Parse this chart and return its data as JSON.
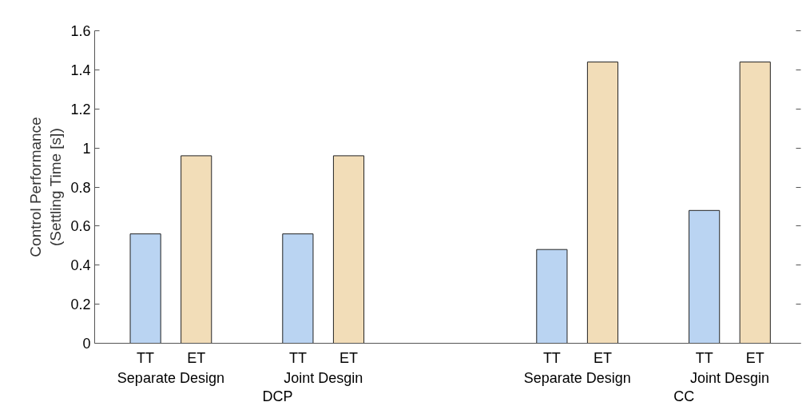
{
  "chart_data": {
    "type": "bar",
    "ylabel": "Control Performance\n(Settling Time [s])",
    "categories": [
      "TT",
      "ET",
      null,
      "TT",
      "ET",
      null,
      null,
      null,
      "TT",
      "ET",
      null,
      "TT",
      "ET"
    ],
    "values": [
      0.56,
      0.96,
      null,
      0.56,
      0.96,
      null,
      null,
      null,
      0.48,
      1.44,
      null,
      0.68,
      1.44
    ],
    "colors": [
      "#bad4f2",
      "#f2ddb8",
      null,
      "#bad4f2",
      "#f2ddb8",
      null,
      null,
      null,
      "#bad4f2",
      "#f2ddb8",
      null,
      "#bad4f2",
      "#f2ddb8"
    ],
    "ylim": [
      0,
      1.6
    ],
    "yticks": [
      0,
      {
        "value": 0.2,
        "label": "0.2"
      },
      {
        "value": 0.4,
        "label": "0.4"
      },
      {
        "value": 0.6,
        "label": "0.6"
      },
      {
        "value": 0.8,
        "label": "0.8"
      },
      1,
      {
        "value": 1.2,
        "label": "1.2"
      },
      {
        "value": 1.4,
        "label": "1.4"
      },
      {
        "value": 1.6,
        "label": "1.6"
      }
    ],
    "annotations": [
      "Separate Design",
      "Joint Desgin",
      "Separate Design",
      "Joint Desgin",
      "DCP",
      "CC"
    ],
    "grid": false
  }
}
